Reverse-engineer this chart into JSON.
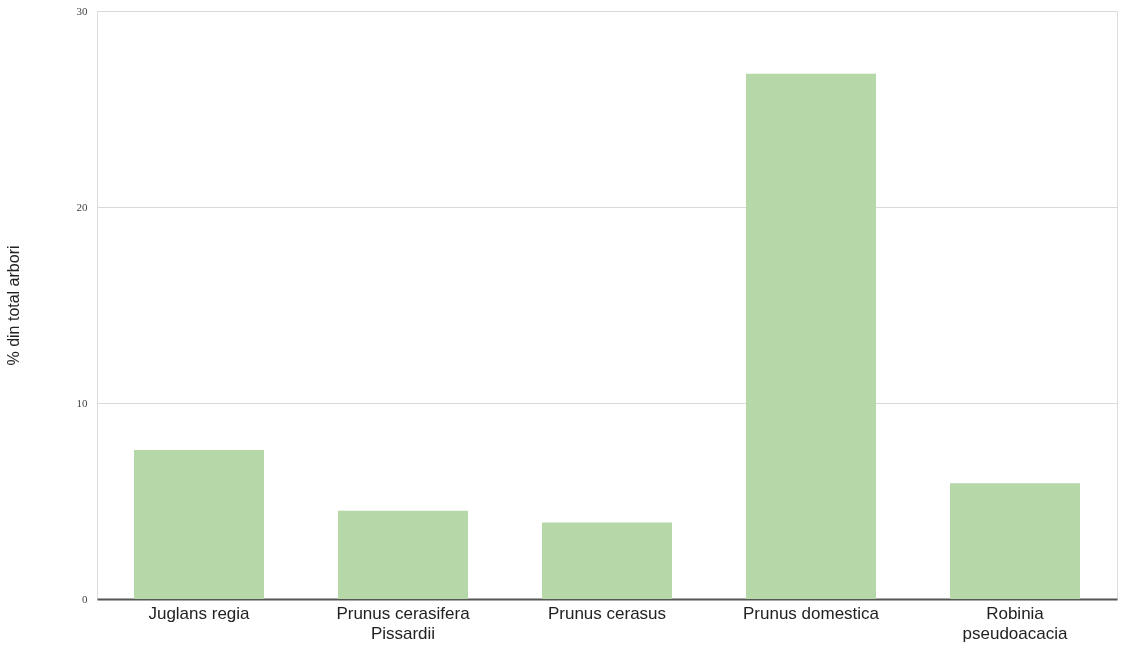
{
  "chart_data": {
    "type": "bar",
    "ylabel": "% din total arbori",
    "categories": [
      "Juglans regia",
      "Prunus cerasifera\nPissardii",
      "Prunus cerasus",
      "Prunus domestica",
      "Robinia\npseudoacacia"
    ],
    "values": [
      7.6,
      4.5,
      3.9,
      26.8,
      5.9
    ],
    "color": "#b6d7a8",
    "ylim": [
      0,
      30
    ],
    "yticks": [
      0,
      10,
      20,
      30
    ],
    "grid": "y"
  }
}
